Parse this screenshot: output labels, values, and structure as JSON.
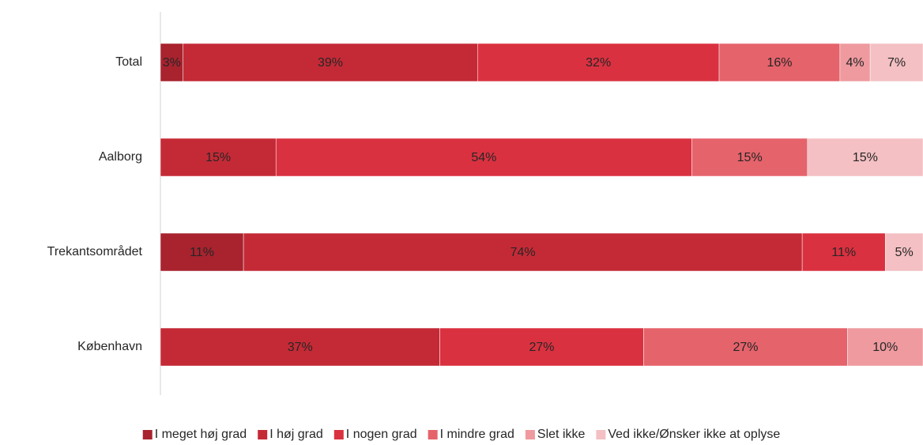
{
  "chart_data": {
    "type": "bar",
    "orientation": "horizontal",
    "stacked": "percent",
    "categories": [
      "Total",
      "Aalborg",
      "Trekantsområdet",
      "København"
    ],
    "series": [
      {
        "name": "I meget høj grad",
        "color": "#a8232e",
        "values": [
          3,
          null,
          11,
          null
        ],
        "value_labels": [
          "3%",
          null,
          "11%",
          null
        ]
      },
      {
        "name": "I høj grad",
        "color": "#c42a36",
        "values": [
          39,
          15,
          74,
          37
        ],
        "value_labels": [
          "39%",
          "15%",
          "74%",
          "37%"
        ]
      },
      {
        "name": "I nogen grad",
        "color": "#da3140",
        "values": [
          32,
          54,
          11,
          27
        ],
        "value_labels": [
          "32%",
          "54%",
          "11%",
          "27%"
        ]
      },
      {
        "name": "I mindre grad",
        "color": "#e5636b",
        "values": [
          16,
          15,
          null,
          27
        ],
        "value_labels": [
          "16%",
          "15%",
          null,
          "27%"
        ]
      },
      {
        "name": "Slet ikke",
        "color": "#ee9a9f",
        "values": [
          4,
          null,
          null,
          10
        ],
        "value_labels": [
          "4%",
          null,
          null,
          "10%"
        ]
      },
      {
        "name": "Ved ikke/Ønsker ikke at oplyse",
        "color": "#f4c0c3",
        "values": [
          7,
          15,
          5,
          null
        ],
        "value_labels": [
          "7%",
          "15%",
          "5%",
          null
        ]
      }
    ],
    "legend": "bottom"
  }
}
